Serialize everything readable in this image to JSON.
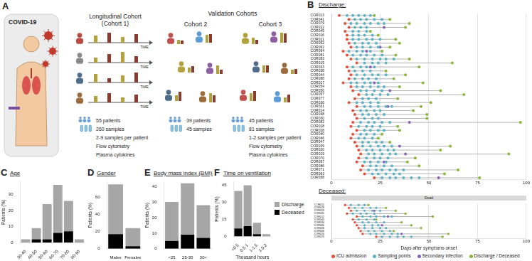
{
  "diagram": {
    "panel": "A",
    "patient_label": "COVID-19",
    "longitudinal": {
      "title": "Longitudinal Cohort",
      "subtitle": "(Cohort 1)",
      "time_labels": [
        "TIME",
        "TIME",
        "TIME",
        "TIME"
      ],
      "stats": [
        "55 patients",
        "260 samples",
        "2-9 samples per patient",
        "Flow cytometry",
        "Plasma cytokines"
      ]
    },
    "validation": {
      "title": "Validation Cohorts",
      "cohorts": [
        {
          "name": "Cohort 2",
          "stats": [
            "39 patients",
            "45 samples"
          ]
        },
        {
          "name": "Cohort 3",
          "stats": [
            "45 patients",
            "81 samples",
            "1-2 samples per patient",
            "Flow cytometry",
            "Plasma cytokines"
          ]
        }
      ]
    }
  },
  "chart_data": [
    {
      "panel": "B",
      "type": "timeline",
      "title": "Discharge:",
      "categories": [
        "COR013",
        "COR041",
        "COR079",
        "COR022",
        "COR045",
        "COR016",
        "COR021",
        "COR052",
        "COR062",
        "COR064",
        "COR081",
        "COR083",
        "COR015",
        "COR033",
        "COR038",
        "COR044",
        "COR088",
        "COR017",
        "COR054",
        "COR056",
        "COR057",
        "COR077",
        "COR036",
        "COR031",
        "COR014",
        "COR048",
        "COR030",
        "COR082",
        "COR018",
        "COR028",
        "COR040",
        "COR046",
        "COR047",
        "COR039",
        "COR020",
        "COR019",
        "COR070",
        "COR067",
        "COR086",
        "COR071",
        "COR063",
        "COR068"
      ],
      "series": [
        {
          "name": "ICU admission",
          "color": "#e0533f",
          "values": [
            4,
            9,
            7,
            9,
            7,
            8,
            8,
            9,
            10,
            6,
            8,
            10,
            13,
            8,
            9,
            10,
            9,
            6,
            10,
            11,
            14,
            12,
            9,
            13,
            11,
            12,
            13,
            11,
            10,
            13,
            11,
            10,
            12,
            13,
            14,
            15,
            14,
            13,
            16,
            15,
            17,
            22
          ]
        },
        {
          "name": "Sampling points",
          "color": "#5fb3c4",
          "values": [
            [
              8,
              11,
              14,
              17,
              20
            ],
            [
              12,
              15,
              18,
              22,
              26
            ],
            [
              10,
              13,
              17,
              20,
              24,
              27
            ],
            [
              12,
              15,
              18
            ],
            [
              11,
              14,
              18
            ],
            [
              11,
              14,
              17,
              21
            ],
            [
              11,
              14,
              18,
              21,
              25
            ],
            [
              12,
              16,
              19,
              23
            ],
            [
              13,
              16,
              20,
              24
            ],
            [
              9,
              13,
              16,
              20
            ],
            [
              11,
              15,
              18,
              22,
              26
            ],
            [
              13,
              17,
              21,
              25,
              28,
              32
            ],
            [
              17,
              21,
              24,
              28
            ],
            [
              11,
              15,
              18,
              22
            ],
            [
              12,
              16,
              20
            ],
            [
              13,
              17,
              21,
              24,
              28
            ],
            [
              12,
              16,
              19,
              23
            ],
            [
              10,
              13,
              17,
              20,
              24
            ],
            [
              13,
              16,
              20,
              24,
              27
            ],
            [
              15,
              18,
              22,
              26
            ],
            [
              18,
              21,
              25,
              29
            ],
            [
              16,
              19,
              23
            ],
            [
              13,
              16,
              20,
              24
            ],
            [
              17,
              20,
              24,
              28,
              31
            ],
            [
              15,
              18,
              22,
              25
            ],
            [
              16,
              19,
              23,
              27
            ],
            [
              17,
              21,
              24
            ],
            [
              15,
              19,
              22,
              26,
              30
            ],
            [
              14,
              18,
              21,
              25
            ],
            [
              17,
              20,
              24,
              27
            ],
            [
              15,
              18,
              22
            ],
            [
              14,
              17,
              21
            ],
            [
              16,
              19,
              23,
              26
            ],
            [
              16,
              20,
              24,
              27,
              31
            ],
            [
              18,
              21,
              25,
              29,
              32
            ],
            [
              19,
              22,
              26,
              30,
              33
            ],
            [
              18,
              22,
              25,
              29
            ],
            [
              17,
              20,
              24,
              28
            ],
            [
              20,
              23,
              27,
              31
            ],
            [
              19,
              23,
              26,
              30,
              33,
              37
            ],
            [
              21,
              24,
              28,
              32,
              35
            ],
            [
              26,
              30,
              33,
              37,
              41,
              45
            ]
          ]
        },
        {
          "name": "Secondary infection",
          "color": "#8a63b8",
          "values": [
            [],
            [],
            [],
            [
              27
            ],
            [],
            [],
            [],
            [],
            [
              25
            ],
            [
              18
            ],
            [],
            [],
            [],
            [
              20
            ],
            [],
            [],
            [],
            [
              22
            ],
            [],
            [
              30
            ],
            [],
            [],
            [],
            [
              29
            ],
            [],
            [],
            [],
            [
              40
            ],
            [],
            [],
            [],
            [],
            [],
            [
              35
            ],
            [],
            [
              38
            ],
            [],
            [
              27
            ],
            [],
            [],
            [],
            [
              55
            ]
          ]
        },
        {
          "name": "Discharge / Deceased",
          "color": "#8db53c",
          "values": [
            22,
            30,
            40,
            38,
            20,
            24,
            33,
            35,
            30,
            26,
            33,
            40,
            62,
            45,
            28,
            38,
            32,
            47,
            35,
            56,
            68,
            34,
            51,
            46,
            42,
            49,
            49,
            97,
            34,
            35,
            26,
            24,
            30,
            61,
            56,
            91,
            43,
            39,
            45,
            65,
            58,
            76
          ]
        }
      ],
      "xlim": [
        0,
        100
      ],
      "xticks": [
        0,
        25,
        50,
        75,
        100
      ],
      "grid": true
    },
    {
      "type": "timeline",
      "title": "Deceased:",
      "strip": "Dead",
      "x_label": "Days after symptoms onset",
      "categories": [
        "COR011",
        "COR078",
        "COR023",
        "COR065",
        "COR012",
        "COR043",
        "COR034",
        "COR080",
        "COR058",
        "COR069",
        "COR010",
        "COR073"
      ],
      "series": [
        {
          "name": "ICU admission",
          "color": "#e0533f",
          "values": [
            7,
            9,
            10,
            8,
            13,
            11,
            12,
            13,
            14,
            15,
            16,
            23
          ]
        },
        {
          "name": "Sampling points",
          "color": "#5fb3c4",
          "values": [
            [
              10,
              14,
              17
            ],
            [
              12,
              16,
              20,
              23
            ],
            [
              13,
              17,
              21,
              25
            ],
            [
              11,
              15,
              18,
              22
            ],
            [
              16,
              20,
              23,
              27,
              31
            ],
            [
              14,
              18,
              22
            ],
            [
              16,
              19,
              23,
              27
            ],
            [
              17,
              21,
              24
            ],
            [
              17,
              21,
              25,
              28
            ],
            [
              19,
              22,
              26,
              30
            ],
            [
              20,
              23,
              27,
              31,
              34
            ],
            [
              26,
              30,
              34,
              37,
              41
            ]
          ]
        },
        {
          "name": "Secondary infection",
          "color": "#8a63b8",
          "values": [
            [],
            [],
            [
              22
            ],
            [],
            [
              29
            ],
            [],
            [],
            [
              26
            ],
            [],
            [],
            [
              36
            ],
            []
          ]
        },
        {
          "name": "Discharge / Deceased",
          "color": "#8db53c",
          "values": [
            19,
            28,
            33,
            38,
            52,
            23,
            36,
            41,
            46,
            32,
            60,
            57
          ]
        }
      ],
      "xlim": [
        0,
        100
      ],
      "xticks": [
        0,
        25,
        50,
        75,
        100
      ],
      "grid": true,
      "legend": "bottom"
    },
    {
      "panel": "C",
      "type": "bar",
      "title": "Age",
      "y_label": "Patients (%)",
      "categories": [
        "30-40",
        "40-50",
        "50-60",
        "60-70",
        "70-80",
        "80-90"
      ],
      "series": [
        {
          "name": "Discharge",
          "color": "#a6a6a6",
          "values": [
            2,
            7,
            22,
            30,
            19,
            2
          ]
        },
        {
          "name": "Deceased",
          "color": "#000000",
          "values": [
            0,
            2,
            2,
            6,
            7,
            0
          ]
        }
      ],
      "stacked": true,
      "ylim": [
        0,
        38
      ],
      "yticks": [
        0,
        10,
        20,
        30
      ],
      "grid": false
    },
    {
      "panel": "D",
      "type": "bar",
      "title": "Gender",
      "y_label": "Patients (%)",
      "categories": [
        "Males",
        "Females"
      ],
      "series": [
        {
          "name": "Discharge",
          "color": "#a6a6a6",
          "values": [
            58,
            21
          ]
        },
        {
          "name": "Deceased",
          "color": "#000000",
          "values": [
            17,
            3
          ]
        }
      ],
      "stacked": true,
      "ylim": [
        0,
        78
      ],
      "yticks": [
        0,
        20,
        40,
        60
      ],
      "grid": false
    },
    {
      "panel": "E",
      "type": "bar",
      "title": "Body mass index (BMI)",
      "y_label": "Patients (%)",
      "categories": [
        "<25",
        "25-30",
        "30<"
      ],
      "series": [
        {
          "name": "Discharge",
          "color": "#a6a6a6",
          "values": [
            25,
            33,
            21
          ]
        },
        {
          "name": "Deceased",
          "color": "#000000",
          "values": [
            5,
            9,
            7
          ]
        }
      ],
      "stacked": true,
      "ylim": [
        0,
        43
      ],
      "yticks": [
        0,
        10,
        20,
        30,
        40
      ],
      "grid": false
    },
    {
      "panel": "F",
      "type": "bar",
      "title": "Time on ventilation",
      "y_label": "Patients (%)",
      "x_label": "Thousand hours",
      "categories": [
        "<0.5",
        "0.5-1",
        "1-1.5",
        "1.5-2"
      ],
      "series": [
        {
          "name": "Discharge",
          "color": "#a6a6a6",
          "values": [
            33,
            36,
            10,
            2
          ]
        },
        {
          "name": "Deceased",
          "color": "#000000",
          "values": [
            7,
            9,
            2,
            0
          ]
        }
      ],
      "stacked": true,
      "ylim": [
        0,
        48
      ],
      "yticks": [
        0,
        15,
        30,
        45
      ],
      "grid": false,
      "legend": "right"
    }
  ]
}
